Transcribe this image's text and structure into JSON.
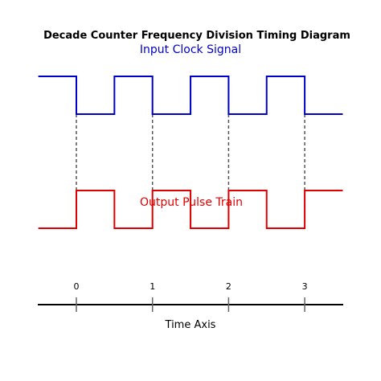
{
  "diagram": {
    "title": "Decade Counter Frequency Division Timing Diagram",
    "input_label": "Input Clock Signal",
    "output_label": "Output Pulse Train",
    "axis_label": "Time Axis",
    "ticks": [
      "0",
      "1",
      "2",
      "3"
    ],
    "colors": {
      "input": "#0000cc",
      "output": "#e00000",
      "axis": "#000000",
      "guide": "#555555"
    },
    "input_signal": {
      "t_start": -0.5,
      "t_end": 3.5,
      "transitions": [
        0,
        0.5,
        1,
        1.5,
        2,
        2.5,
        3
      ],
      "initial_level": 1
    },
    "output_signal": {
      "t_start": -0.5,
      "t_end": 3.5,
      "transitions": [
        0,
        0.5,
        1,
        1.5,
        2,
        2.5,
        3
      ],
      "initial_level": 0
    }
  }
}
